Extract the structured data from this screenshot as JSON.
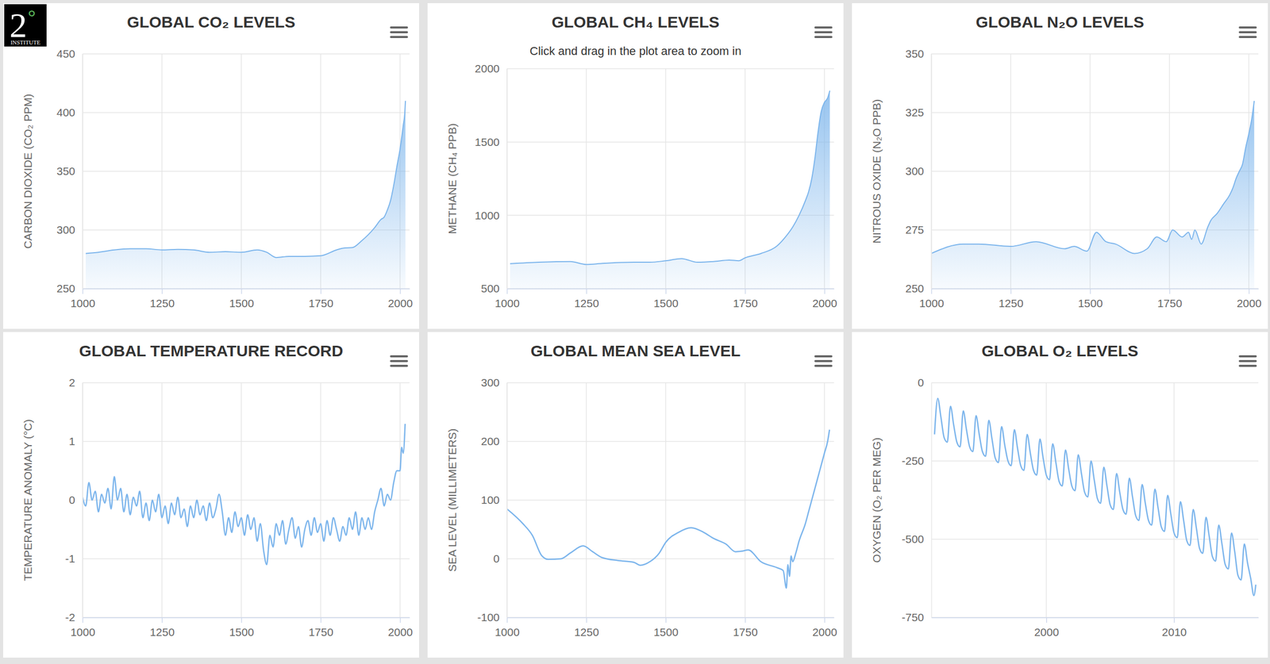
{
  "logo": {
    "number": "2",
    "symbol": "°",
    "name": "INSTITUTE"
  },
  "chart_data": [
    {
      "type": "area",
      "title": "GLOBAL CO₂ LEVELS",
      "y_label": "CARBON DIOXIDE (CO₂ PPM)",
      "color": "#7cb5ec",
      "grid": true,
      "xlim": [
        1000,
        2030
      ],
      "ylim": [
        250,
        450
      ],
      "xticks": [
        1000,
        1250,
        1500,
        1750,
        2000
      ],
      "yticks": [
        250,
        300,
        350,
        400,
        450
      ],
      "x": [
        1010,
        1050,
        1100,
        1150,
        1200,
        1250,
        1300,
        1350,
        1400,
        1450,
        1500,
        1550,
        1580,
        1610,
        1650,
        1700,
        1750,
        1800,
        1820,
        1850,
        1880,
        1900,
        1920,
        1940,
        1950,
        1960,
        1970,
        1980,
        1990,
        2000,
        2010,
        2015,
        2017
      ],
      "values": [
        280,
        281,
        283,
        284,
        284,
        283,
        283.5,
        283,
        281,
        281.5,
        281,
        283,
        281,
        276.5,
        277.5,
        277.5,
        278,
        283,
        284.5,
        285,
        291,
        296,
        302,
        309,
        311,
        317,
        325,
        338,
        354,
        369,
        389,
        400,
        410
      ]
    },
    {
      "type": "area",
      "title": "GLOBAL CH₄ LEVELS",
      "subtitle": "Click and drag in the plot area to zoom in",
      "y_label": "METHANE (CH₄ PPB)",
      "color": "#7cb5ec",
      "grid": true,
      "xlim": [
        1000,
        2030
      ],
      "ylim": [
        500,
        2000
      ],
      "xticks": [
        1000,
        1250,
        1500,
        1750,
        2000
      ],
      "yticks": [
        500,
        1000,
        1500,
        2000
      ],
      "x": [
        1010,
        1100,
        1200,
        1250,
        1300,
        1400,
        1450,
        1500,
        1550,
        1600,
        1650,
        1700,
        1730,
        1750,
        1800,
        1850,
        1880,
        1900,
        1920,
        1940,
        1950,
        1960,
        1970,
        1980,
        1990,
        2000,
        2010,
        2017
      ],
      "values": [
        670,
        680,
        685,
        665,
        672,
        680,
        680,
        690,
        705,
        680,
        685,
        695,
        690,
        710,
        740,
        790,
        860,
        920,
        1000,
        1100,
        1160,
        1250,
        1390,
        1570,
        1710,
        1770,
        1800,
        1850
      ]
    },
    {
      "type": "area",
      "title": "GLOBAL N₂O LEVELS",
      "y_label": "NITROUS OXIDE (N₂O PPB)",
      "color": "#7cb5ec",
      "grid": true,
      "xlim": [
        1000,
        2030
      ],
      "ylim": [
        250,
        350
      ],
      "xticks": [
        1000,
        1250,
        1500,
        1750,
        2000
      ],
      "yticks": [
        250,
        275,
        300,
        325,
        350
      ],
      "x": [
        1000,
        1100,
        1150,
        1250,
        1330,
        1420,
        1450,
        1490,
        1520,
        1550,
        1580,
        1640,
        1680,
        1710,
        1740,
        1760,
        1790,
        1810,
        1820,
        1830,
        1850,
        1870,
        1880,
        1900,
        1920,
        1940,
        1950,
        1960,
        1970,
        1980,
        1990,
        2000,
        2010,
        2017
      ],
      "values": [
        265,
        269,
        269,
        268,
        270,
        267,
        268,
        266,
        274,
        270,
        269,
        265,
        267,
        272,
        270,
        275,
        272,
        274,
        271,
        275,
        269,
        276,
        279,
        282,
        286,
        290,
        293,
        297,
        300,
        303,
        310,
        316,
        323,
        330
      ]
    },
    {
      "type": "line",
      "title": "GLOBAL TEMPERATURE RECORD",
      "y_label": "TEMPERATURE ANOMALY (°C)",
      "color": "#7cb5ec",
      "grid": true,
      "xlim": [
        1000,
        2030
      ],
      "ylim": [
        -2,
        2
      ],
      "xticks": [
        1000,
        1250,
        1500,
        1750,
        2000
      ],
      "yticks": [
        -2,
        -1,
        0,
        1,
        2
      ],
      "x": [
        1000,
        1010,
        1020,
        1030,
        1040,
        1050,
        1060,
        1070,
        1080,
        1090,
        1100,
        1110,
        1120,
        1130,
        1140,
        1150,
        1160,
        1170,
        1180,
        1190,
        1200,
        1210,
        1220,
        1230,
        1240,
        1250,
        1260,
        1270,
        1280,
        1290,
        1300,
        1310,
        1320,
        1330,
        1340,
        1350,
        1360,
        1370,
        1380,
        1390,
        1400,
        1410,
        1420,
        1430,
        1440,
        1450,
        1460,
        1470,
        1480,
        1490,
        1500,
        1510,
        1520,
        1530,
        1540,
        1550,
        1560,
        1570,
        1580,
        1590,
        1600,
        1610,
        1620,
        1630,
        1640,
        1650,
        1660,
        1670,
        1680,
        1690,
        1700,
        1710,
        1720,
        1730,
        1740,
        1750,
        1760,
        1770,
        1780,
        1790,
        1800,
        1810,
        1820,
        1830,
        1840,
        1850,
        1860,
        1870,
        1880,
        1890,
        1900,
        1910,
        1920,
        1930,
        1940,
        1950,
        1960,
        1970,
        1980,
        1990,
        2000,
        2005,
        2010,
        2016
      ],
      "values": [
        0.05,
        -0.1,
        0.3,
        0.0,
        0.15,
        -0.2,
        0.1,
        -0.05,
        0.2,
        -0.15,
        0.4,
        0.0,
        0.2,
        -0.2,
        0.1,
        -0.25,
        0.05,
        -0.1,
        0.15,
        -0.3,
        -0.05,
        -0.35,
        0.0,
        -0.2,
        0.1,
        -0.3,
        -0.1,
        -0.4,
        -0.05,
        -0.25,
        0.05,
        -0.3,
        -0.15,
        -0.45,
        -0.1,
        -0.3,
        0.0,
        -0.25,
        -0.1,
        -0.35,
        -0.05,
        -0.3,
        -0.15,
        0.1,
        -0.2,
        -0.6,
        -0.3,
        -0.55,
        -0.2,
        -0.45,
        -0.3,
        -0.6,
        -0.25,
        -0.5,
        -0.3,
        -0.7,
        -0.4,
        -0.85,
        -1.1,
        -0.6,
        -0.8,
        -0.4,
        -0.6,
        -0.35,
        -0.75,
        -0.5,
        -0.3,
        -0.65,
        -0.45,
        -0.8,
        -0.5,
        -0.35,
        -0.6,
        -0.3,
        -0.55,
        -0.4,
        -0.7,
        -0.35,
        -0.6,
        -0.3,
        -0.5,
        -0.7,
        -0.45,
        -0.6,
        -0.3,
        -0.5,
        -0.2,
        -0.6,
        -0.3,
        -0.5,
        -0.3,
        -0.5,
        -0.2,
        0.0,
        0.2,
        -0.1,
        0.1,
        0.0,
        0.3,
        0.5,
        0.5,
        0.9,
        0.8,
        1.3
      ]
    },
    {
      "type": "line",
      "title": "GLOBAL MEAN SEA LEVEL",
      "y_label": "SEA LEVEL (MILLIMETERS)",
      "color": "#7cb5ec",
      "grid": true,
      "xlim": [
        1000,
        2030
      ],
      "ylim": [
        -100,
        300
      ],
      "xticks": [
        1000,
        1250,
        1500,
        1750,
        2000
      ],
      "yticks": [
        -100,
        0,
        100,
        200,
        300
      ],
      "x": [
        1000,
        1050,
        1080,
        1110,
        1130,
        1170,
        1200,
        1240,
        1270,
        1300,
        1350,
        1400,
        1420,
        1450,
        1480,
        1500,
        1540,
        1580,
        1620,
        1650,
        1690,
        1720,
        1740,
        1760,
        1800,
        1850,
        1870,
        1880,
        1885,
        1890,
        1895,
        1900,
        1910,
        1920,
        1940,
        1950,
        1960,
        1970,
        1980,
        1990,
        2000,
        2010,
        2016
      ],
      "values": [
        85,
        60,
        40,
        5,
        -1,
        0,
        10,
        22,
        12,
        2,
        -3,
        -6,
        -11,
        -5,
        10,
        28,
        45,
        53,
        45,
        35,
        25,
        12,
        13,
        15,
        -5,
        -15,
        -20,
        -50,
        -10,
        -30,
        5,
        -5,
        10,
        30,
        60,
        80,
        100,
        120,
        140,
        160,
        180,
        200,
        220
      ]
    },
    {
      "type": "line",
      "title": "GLOBAL O₂ LEVELS",
      "y_label": "OXYGEN (O₂ PER MEG)",
      "color": "#7cb5ec",
      "grid": true,
      "xlim": [
        1991,
        2016.6
      ],
      "ylim": [
        -750,
        0
      ],
      "xticks": [
        2000,
        2010
      ],
      "yticks": [
        -750,
        -500,
        -250,
        0
      ],
      "x": [
        1991.25,
        1991.5,
        1991.75,
        1992,
        1992.25,
        1992.5,
        1992.75,
        1993,
        1993.25,
        1993.5,
        1993.75,
        1994,
        1994.25,
        1994.5,
        1994.75,
        1995,
        1995.25,
        1995.5,
        1995.75,
        1996,
        1996.25,
        1996.5,
        1996.75,
        1997,
        1997.25,
        1997.5,
        1997.75,
        1998,
        1998.25,
        1998.5,
        1998.75,
        1999,
        1999.25,
        1999.5,
        1999.75,
        2000,
        2000.25,
        2000.5,
        2000.75,
        2001,
        2001.25,
        2001.5,
        2001.75,
        2002,
        2002.25,
        2002.5,
        2002.75,
        2003,
        2003.25,
        2003.5,
        2003.75,
        2004,
        2004.25,
        2004.5,
        2004.75,
        2005,
        2005.25,
        2005.5,
        2005.75,
        2006,
        2006.25,
        2006.5,
        2006.75,
        2007,
        2007.25,
        2007.5,
        2007.75,
        2008,
        2008.25,
        2008.5,
        2008.75,
        2009,
        2009.25,
        2009.5,
        2009.75,
        2010,
        2010.25,
        2010.5,
        2010.75,
        2011,
        2011.25,
        2011.5,
        2011.75,
        2012,
        2012.25,
        2012.5,
        2012.75,
        2013,
        2013.25,
        2013.5,
        2013.75,
        2014,
        2014.25,
        2014.5,
        2014.75,
        2015,
        2015.25,
        2015.5,
        2015.75,
        2016,
        2016.25,
        2016.4
      ],
      "values": [
        -165,
        -50,
        -110,
        -175,
        -190,
        -75,
        -135,
        -190,
        -205,
        -90,
        -150,
        -205,
        -220,
        -105,
        -165,
        -220,
        -235,
        -120,
        -180,
        -240,
        -255,
        -140,
        -200,
        -250,
        -265,
        -150,
        -210,
        -265,
        -280,
        -165,
        -225,
        -280,
        -295,
        -180,
        -240,
        -295,
        -310,
        -195,
        -255,
        -315,
        -330,
        -215,
        -275,
        -330,
        -345,
        -230,
        -290,
        -350,
        -365,
        -250,
        -310,
        -370,
        -385,
        -270,
        -330,
        -390,
        -405,
        -290,
        -350,
        -405,
        -420,
        -305,
        -365,
        -425,
        -440,
        -325,
        -385,
        -440,
        -455,
        -340,
        -400,
        -460,
        -475,
        -360,
        -420,
        -480,
        -495,
        -380,
        -440,
        -505,
        -520,
        -405,
        -465,
        -530,
        -545,
        -430,
        -490,
        -555,
        -570,
        -455,
        -515,
        -580,
        -595,
        -480,
        -540,
        -615,
        -630,
        -515,
        -575,
        -625,
        -680,
        -645
      ]
    }
  ]
}
